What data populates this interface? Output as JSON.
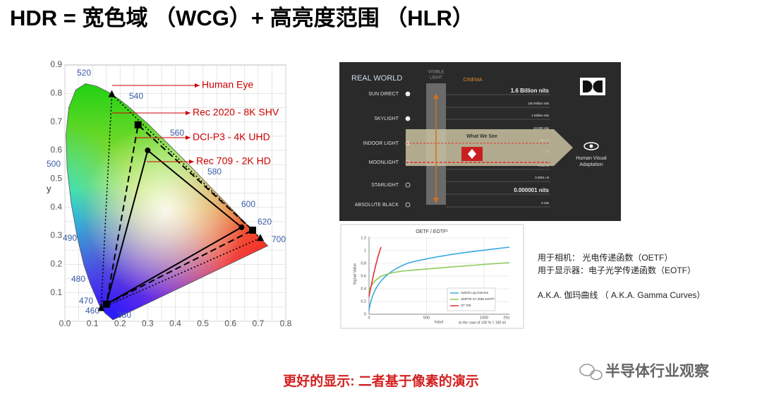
{
  "title": "HDR = 宽色域 （WCG）+ 高亮度范围 （HLR）",
  "cie_diagram": {
    "y_axis_label": "y",
    "x_ticks": [
      "0.0",
      "0.1",
      "0.2",
      "0.3",
      "0.4",
      "0.5",
      "0.6",
      "0.7",
      "0.8"
    ],
    "y_ticks": [
      "0.1",
      "0.2",
      "0.3",
      "0.4",
      "0.5",
      "0.6",
      "0.7",
      "0.8",
      "0.9"
    ],
    "wavelengths": [
      "520",
      "540",
      "560",
      "580",
      "600",
      "620",
      "700",
      "500",
      "490",
      "480",
      "470",
      "460",
      "380"
    ],
    "annotations": [
      "Human Eye",
      "Rec 2020 - 8K SHV",
      "DCI-P3 - 4K UHD",
      "Rec 709 - 2K HD"
    ]
  },
  "light_range": {
    "heading": "REAL WORLD",
    "visible_light": [
      "VISIBLE",
      "LIGHT"
    ],
    "cinema": "CINEMA",
    "sources": [
      "SUN DIRECT",
      "SKYLIGHT",
      "INDOOR LIGHT",
      "MOONLIGHT",
      "STARLIGHT",
      "ABSOLUTE BLACK"
    ],
    "levels": [
      "1.6 Billion nits",
      "100 Million nits",
      "1 Million nits",
      "10,000 nits",
      "100 nit",
      "1 nit",
      "0.01 nit",
      "0.0001 nit",
      "0.000001 nits",
      "0 nits"
    ],
    "band_label": "What We See",
    "adaptation": [
      "Human Visual",
      "Adaptation"
    ]
  },
  "transfer_chart": {
    "title": "OETF / EOTF¹",
    "y_label": "Signal Value",
    "y_ticks": [
      "0",
      "0.2",
      "0.4",
      "0.6",
      "0.8",
      "1",
      "1.2"
    ],
    "x_ticks": [
      "0",
      "500",
      "1000"
    ],
    "x_unit": "(%)",
    "x_label": "Input",
    "footnote": "¹in the case of 100 % = 100 nit",
    "legend": [
      "Hybrid Log Gamma",
      "SMPTE ST 2084 EOTF¹",
      "ST 709"
    ]
  },
  "notes": [
    "用于相机： 光电传递函数（OETF）",
    "用于显示器：电子光学传递函数（EOTF）",
    "A.K.A. 伽玛曲线 （ A.K.A. Gamma Curves）"
  ],
  "caption": "更好的显示: 二者基于像素的演示",
  "watermark": "半导体行业观察"
}
